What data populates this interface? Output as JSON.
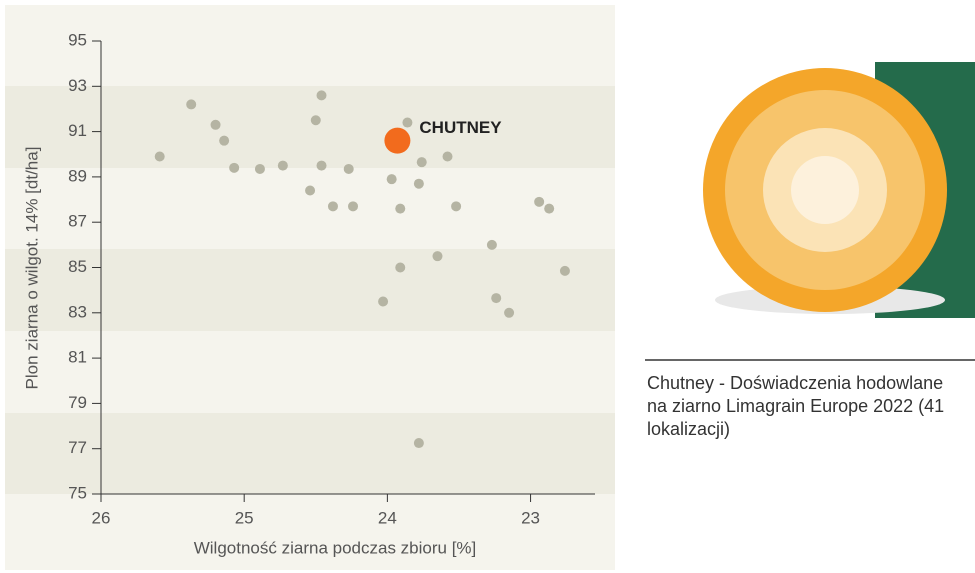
{
  "chart_data": {
    "type": "scatter",
    "xlabel": "Wilgotność ziarna podczas zbioru [%]",
    "ylabel": "Plon ziarna o wilgot. 14% [dt/ha]",
    "x": [
      25.59,
      25.37,
      25.2,
      25.14,
      25.07,
      24.89,
      24.73,
      24.54,
      24.5,
      24.46,
      24.46,
      24.38,
      24.27,
      24.24,
      24.03,
      23.97,
      23.91,
      23.91,
      23.86,
      23.78,
      23.76,
      23.78,
      23.65,
      23.58,
      23.52,
      23.27,
      23.24,
      23.15,
      22.94,
      22.87,
      22.76
    ],
    "values": [
      89.9,
      92.2,
      91.3,
      90.6,
      89.4,
      89.35,
      89.5,
      88.4,
      91.5,
      92.6,
      89.5,
      87.7,
      89.35,
      87.7,
      83.5,
      88.9,
      87.6,
      85.0,
      91.4,
      88.7,
      89.65,
      77.25,
      85.5,
      89.9,
      87.7,
      86.0,
      83.65,
      83.0,
      87.9,
      87.6,
      84.85
    ],
    "color": "#b5b4a3",
    "highlight": {
      "label": "CHUTNEY",
      "x": 23.93,
      "y": 90.6,
      "color": "#f26b1d"
    },
    "xlim": [
      26,
      22.55
    ],
    "xticks": [
      26,
      25,
      24,
      23
    ],
    "ylim": [
      75,
      95
    ],
    "yticks": [
      75,
      77,
      79,
      81,
      83,
      85,
      87,
      89,
      91,
      93,
      95
    ]
  },
  "caption": "Chutney - Doświadczenia hodowlane na ziarno Limagrain Europe 2022 (41 lokalizacji)"
}
